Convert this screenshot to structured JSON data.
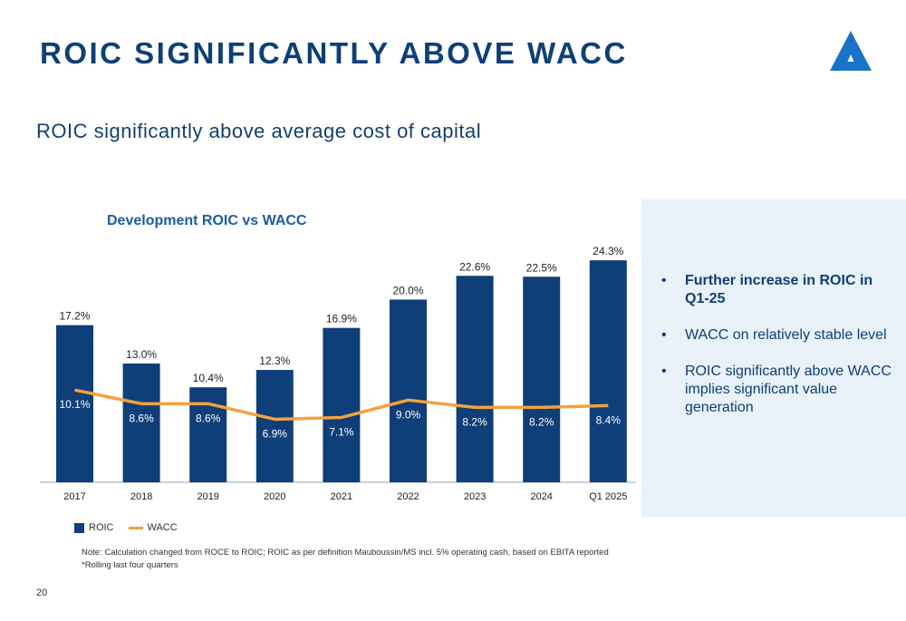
{
  "header": {
    "title": "ROIC SIGNIFICANTLY ABOVE WACC",
    "subtitle": "ROIC significantly above average cost of capital"
  },
  "chart_data": {
    "type": "bar",
    "title": "Development ROIC vs WACC",
    "categories": [
      "2017",
      "2018",
      "2019",
      "2020",
      "2021",
      "2022",
      "2023",
      "2024",
      "Q1 2025"
    ],
    "series": [
      {
        "name": "ROIC",
        "type": "bar",
        "color": "#0e3f78",
        "values": [
          17.2,
          13.0,
          10.4,
          12.3,
          16.9,
          20.0,
          22.6,
          22.5,
          24.3
        ],
        "labels": [
          "17.2%",
          "13.0%",
          "10.4%",
          "12.3%",
          "16.9%",
          "20.0%",
          "22.6%",
          "22.5%",
          "24.3%"
        ]
      },
      {
        "name": "WACC",
        "type": "line",
        "color": "#f5a03f",
        "values": [
          10.1,
          8.6,
          8.6,
          6.9,
          7.1,
          9.0,
          8.2,
          8.2,
          8.4
        ],
        "labels": [
          "10.1%",
          "8.6%",
          "8.6%",
          "6.9%",
          "7.1%",
          "9.0%",
          "8.2%",
          "8.2%",
          "8.4%"
        ]
      }
    ],
    "ylim": [
      0,
      26
    ],
    "legend": "bottom-left",
    "grid": false
  },
  "panel": {
    "bullets": [
      {
        "text": "Further increase in ROIC in Q1-25",
        "bold": true
      },
      {
        "text": "WACC on relatively stable level",
        "bold": false
      },
      {
        "text": "ROIC significantly above WACC implies significant value generation",
        "bold": false
      }
    ]
  },
  "footer": {
    "note": "Note: Calculation changed from ROCE to ROIC; ROIC as per definition Mauboussin/MS incl. 5% operating cash, based on EBITA reported",
    "footnote": "*Rolling last four quarters",
    "page_number": "20"
  },
  "colors": {
    "navy": "#0e3f78",
    "orange": "#f5a03f",
    "panel": "#e9f1f9",
    "accent": "#1a5da6"
  }
}
